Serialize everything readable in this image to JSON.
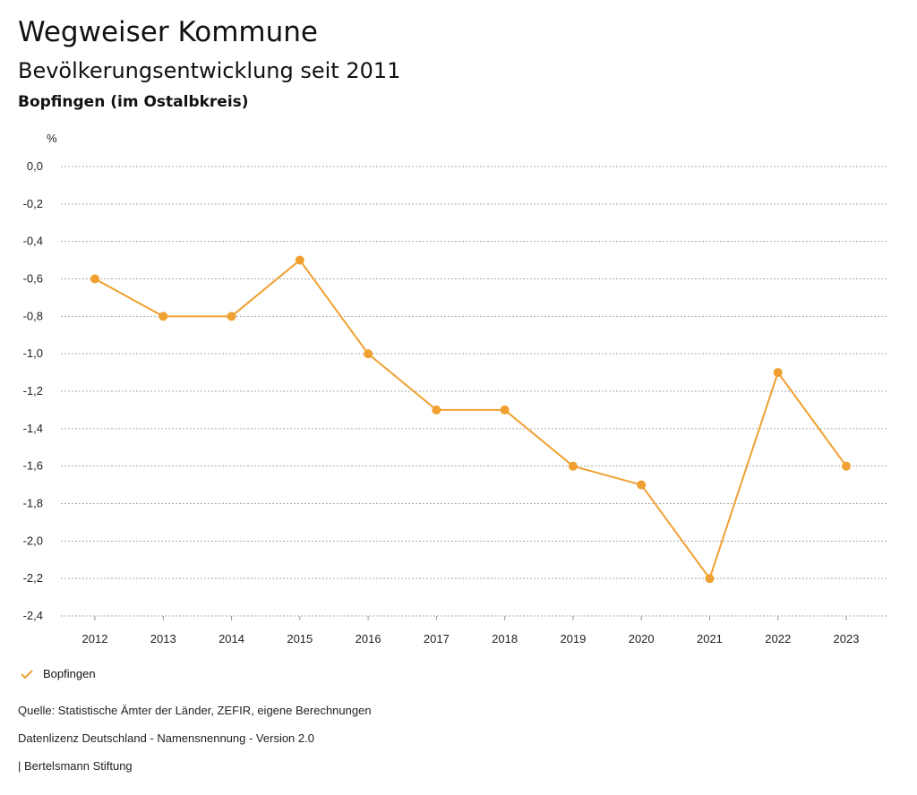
{
  "header": {
    "title": "Wegweiser Kommune",
    "subtitle": "Bevölkerungsentwicklung seit 2011",
    "region": "Bopfingen (im Ostalbkreis)"
  },
  "chart_data": {
    "type": "line",
    "ylabel": "%",
    "x": [
      "2012",
      "2013",
      "2014",
      "2015",
      "2016",
      "2017",
      "2018",
      "2019",
      "2020",
      "2021",
      "2022",
      "2023"
    ],
    "series": [
      {
        "name": "Bopfingen",
        "color": "#f0a030",
        "values": [
          -0.6,
          -0.8,
          -0.8,
          -0.5,
          -1.0,
          -1.3,
          -1.3,
          -1.6,
          -1.7,
          -2.2,
          -1.1,
          -1.6
        ]
      }
    ],
    "ylim": [
      -2.4,
      0
    ],
    "yticks": [
      "0,0",
      "-0,2",
      "-0,4",
      "-0,6",
      "-0,8",
      "-1,0",
      "-1,2",
      "-1,4",
      "-1,6",
      "-1,8",
      "-2,0",
      "-2,2",
      "-2,4"
    ],
    "grid": true,
    "legend_position": "bottom-left"
  },
  "legend": {
    "label": "Bopfingen"
  },
  "footer": {
    "source": "Quelle: Statistische Ämter der Länder, ZEFIR, eigene Berechnungen",
    "license": "Datenlizenz Deutschland - Namensnennung - Version 2.0",
    "publisher": "| Bertelsmann Stiftung"
  }
}
